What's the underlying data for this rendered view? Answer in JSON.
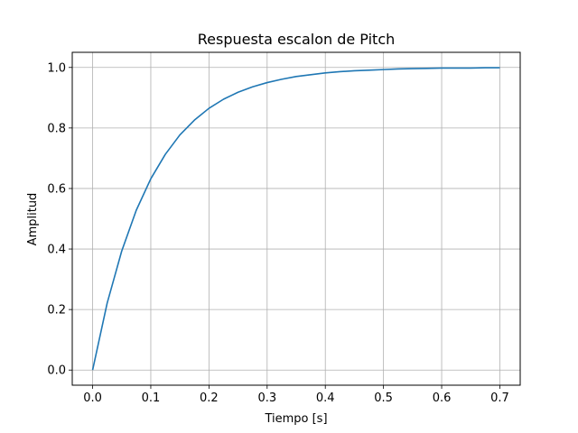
{
  "chart_data": {
    "type": "line",
    "title": "Respuesta escalon de Pitch",
    "xlabel": "Tiempo [s]",
    "ylabel": "Amplitud",
    "xlim": [
      -0.035,
      0.735
    ],
    "ylim": [
      -0.05,
      1.05
    ],
    "xticks": [
      0.0,
      0.1,
      0.2,
      0.3,
      0.4,
      0.5,
      0.6,
      0.7
    ],
    "xtick_labels": [
      "0.0",
      "0.1",
      "0.2",
      "0.3",
      "0.4",
      "0.5",
      "0.6",
      "0.7"
    ],
    "yticks": [
      0.0,
      0.2,
      0.4,
      0.6,
      0.8,
      1.0
    ],
    "ytick_labels": [
      "0.0",
      "0.2",
      "0.4",
      "0.6",
      "0.8",
      "1.0"
    ],
    "grid": true,
    "legend": "none",
    "series": [
      {
        "color": "#1f77b4",
        "x": [
          0.0,
          0.025,
          0.05,
          0.075,
          0.1,
          0.125,
          0.15,
          0.175,
          0.2,
          0.225,
          0.25,
          0.275,
          0.3,
          0.325,
          0.35,
          0.375,
          0.4,
          0.425,
          0.45,
          0.475,
          0.5,
          0.525,
          0.55,
          0.575,
          0.6,
          0.625,
          0.65,
          0.675,
          0.7
        ],
        "y": [
          0.0,
          0.221,
          0.393,
          0.528,
          0.632,
          0.713,
          0.777,
          0.826,
          0.865,
          0.895,
          0.918,
          0.936,
          0.95,
          0.961,
          0.97,
          0.976,
          0.982,
          0.986,
          0.989,
          0.991,
          0.993,
          0.995,
          0.996,
          0.997,
          0.998,
          0.998,
          0.998,
          0.999,
          0.999
        ]
      }
    ]
  }
}
